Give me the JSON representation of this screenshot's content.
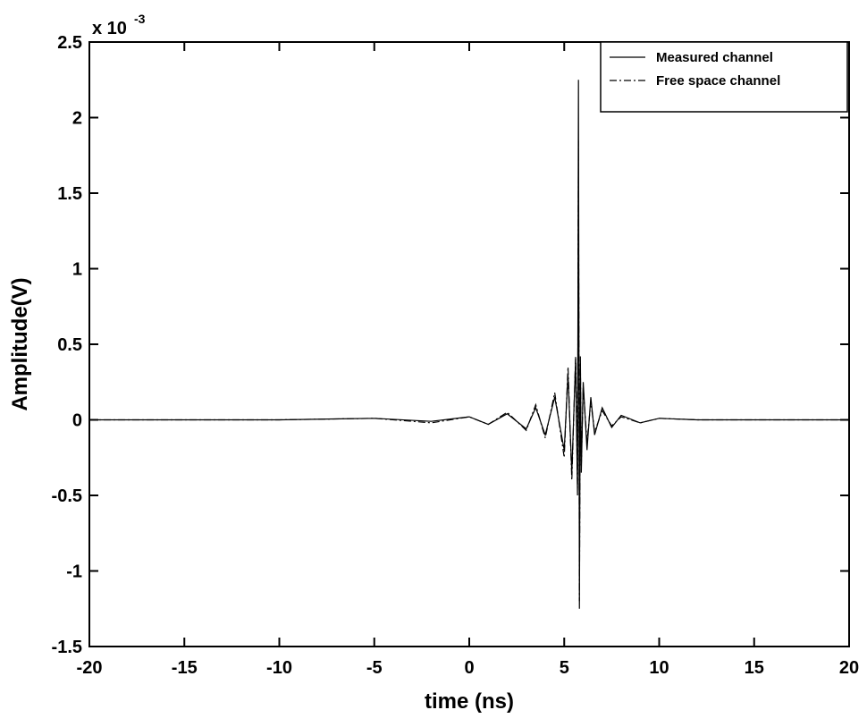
{
  "chart_data": {
    "type": "line",
    "xlabel": "time (ns)",
    "ylabel": "Amplitude(V)",
    "y_multiplier": "x 10",
    "y_multiplier_exponent": "-3",
    "xlim": [
      -20,
      20
    ],
    "xticks": [
      -20,
      -15,
      -10,
      -5,
      0,
      5,
      10,
      15,
      20
    ],
    "ylim": [
      -1.5,
      2.5
    ],
    "yticks": [
      -1.5,
      -1,
      -0.5,
      0,
      0.5,
      1,
      1.5,
      2,
      2.5
    ],
    "legend": "upper right",
    "grid": false,
    "x": [
      -20,
      -15,
      -10,
      -5,
      -2,
      0,
      1,
      2,
      3,
      3.5,
      4,
      4.5,
      5,
      5.2,
      5.4,
      5.6,
      5.7,
      5.75,
      5.8,
      5.85,
      5.9,
      6,
      6.2,
      6.4,
      6.6,
      7,
      7.5,
      8,
      9,
      10,
      12,
      15,
      20
    ],
    "series": [
      {
        "name": "Measured channel",
        "color": "#000000",
        "dash": "solid",
        "values": [
          0,
          0,
          0,
          0.01,
          -0.01,
          0.02,
          -0.03,
          0.04,
          -0.06,
          0.08,
          -0.1,
          0.15,
          -0.2,
          0.3,
          -0.35,
          0.4,
          -0.5,
          2.25,
          -1.25,
          0.42,
          -0.35,
          0.25,
          -0.2,
          0.15,
          -0.1,
          0.08,
          -0.05,
          0.03,
          -0.02,
          0.01,
          0,
          0,
          0
        ]
      },
      {
        "name": "Free space channel",
        "color": "#000000",
        "dash": "dashdot",
        "values": [
          0,
          0,
          0,
          0.01,
          -0.02,
          0.02,
          -0.03,
          0.05,
          -0.07,
          0.1,
          -0.12,
          0.18,
          -0.25,
          0.35,
          -0.4,
          0.42,
          -0.45,
          1.85,
          -1.2,
          0.38,
          -0.3,
          0.22,
          -0.15,
          0.12,
          -0.08,
          0.06,
          -0.04,
          0.02,
          -0.02,
          0.01,
          0,
          0,
          0
        ]
      }
    ]
  }
}
